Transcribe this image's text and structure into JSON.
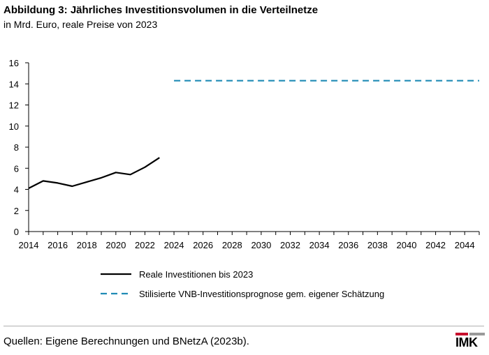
{
  "header": {
    "title": "Abbildung 3: Jährliches Investitionsvolumen in die Verteilnetze",
    "subtitle": "in Mrd. Euro, reale Preise von 2023"
  },
  "footer": {
    "source": "Quellen: Eigene Berechnungen und BNetzA (2023b).",
    "logo_text": "IMK"
  },
  "chart_data": {
    "type": "line",
    "title": "Abbildung 3: Jährliches Investitionsvolumen in die Verteilnetze",
    "subtitle": "in Mrd. Euro, reale Preise von 2023",
    "xlabel": "",
    "ylabel": "",
    "xlim": [
      2014,
      2045
    ],
    "ylim": [
      0,
      16
    ],
    "x_ticks": [
      2014,
      2016,
      2018,
      2020,
      2022,
      2024,
      2026,
      2028,
      2030,
      2032,
      2034,
      2036,
      2038,
      2040,
      2042,
      2044
    ],
    "y_ticks": [
      0,
      2,
      4,
      6,
      8,
      10,
      12,
      14,
      16
    ],
    "grid": false,
    "legend_position": "bottom",
    "series": [
      {
        "name": "Reale Investitionen bis 2023",
        "color": "#000000",
        "style": "solid",
        "x": [
          2014,
          2015,
          2016,
          2017,
          2018,
          2019,
          2020,
          2021,
          2022,
          2023
        ],
        "y": [
          4.1,
          4.8,
          4.6,
          4.3,
          4.7,
          5.1,
          5.6,
          5.4,
          6.1,
          7.0
        ]
      },
      {
        "name": "Stilisierte VNB-Investitionsprognose gem. eigener Schätzung",
        "color": "#1f8bb5",
        "style": "dashed",
        "x": [
          2024,
          2045
        ],
        "y": [
          14.3,
          14.3
        ]
      }
    ]
  }
}
